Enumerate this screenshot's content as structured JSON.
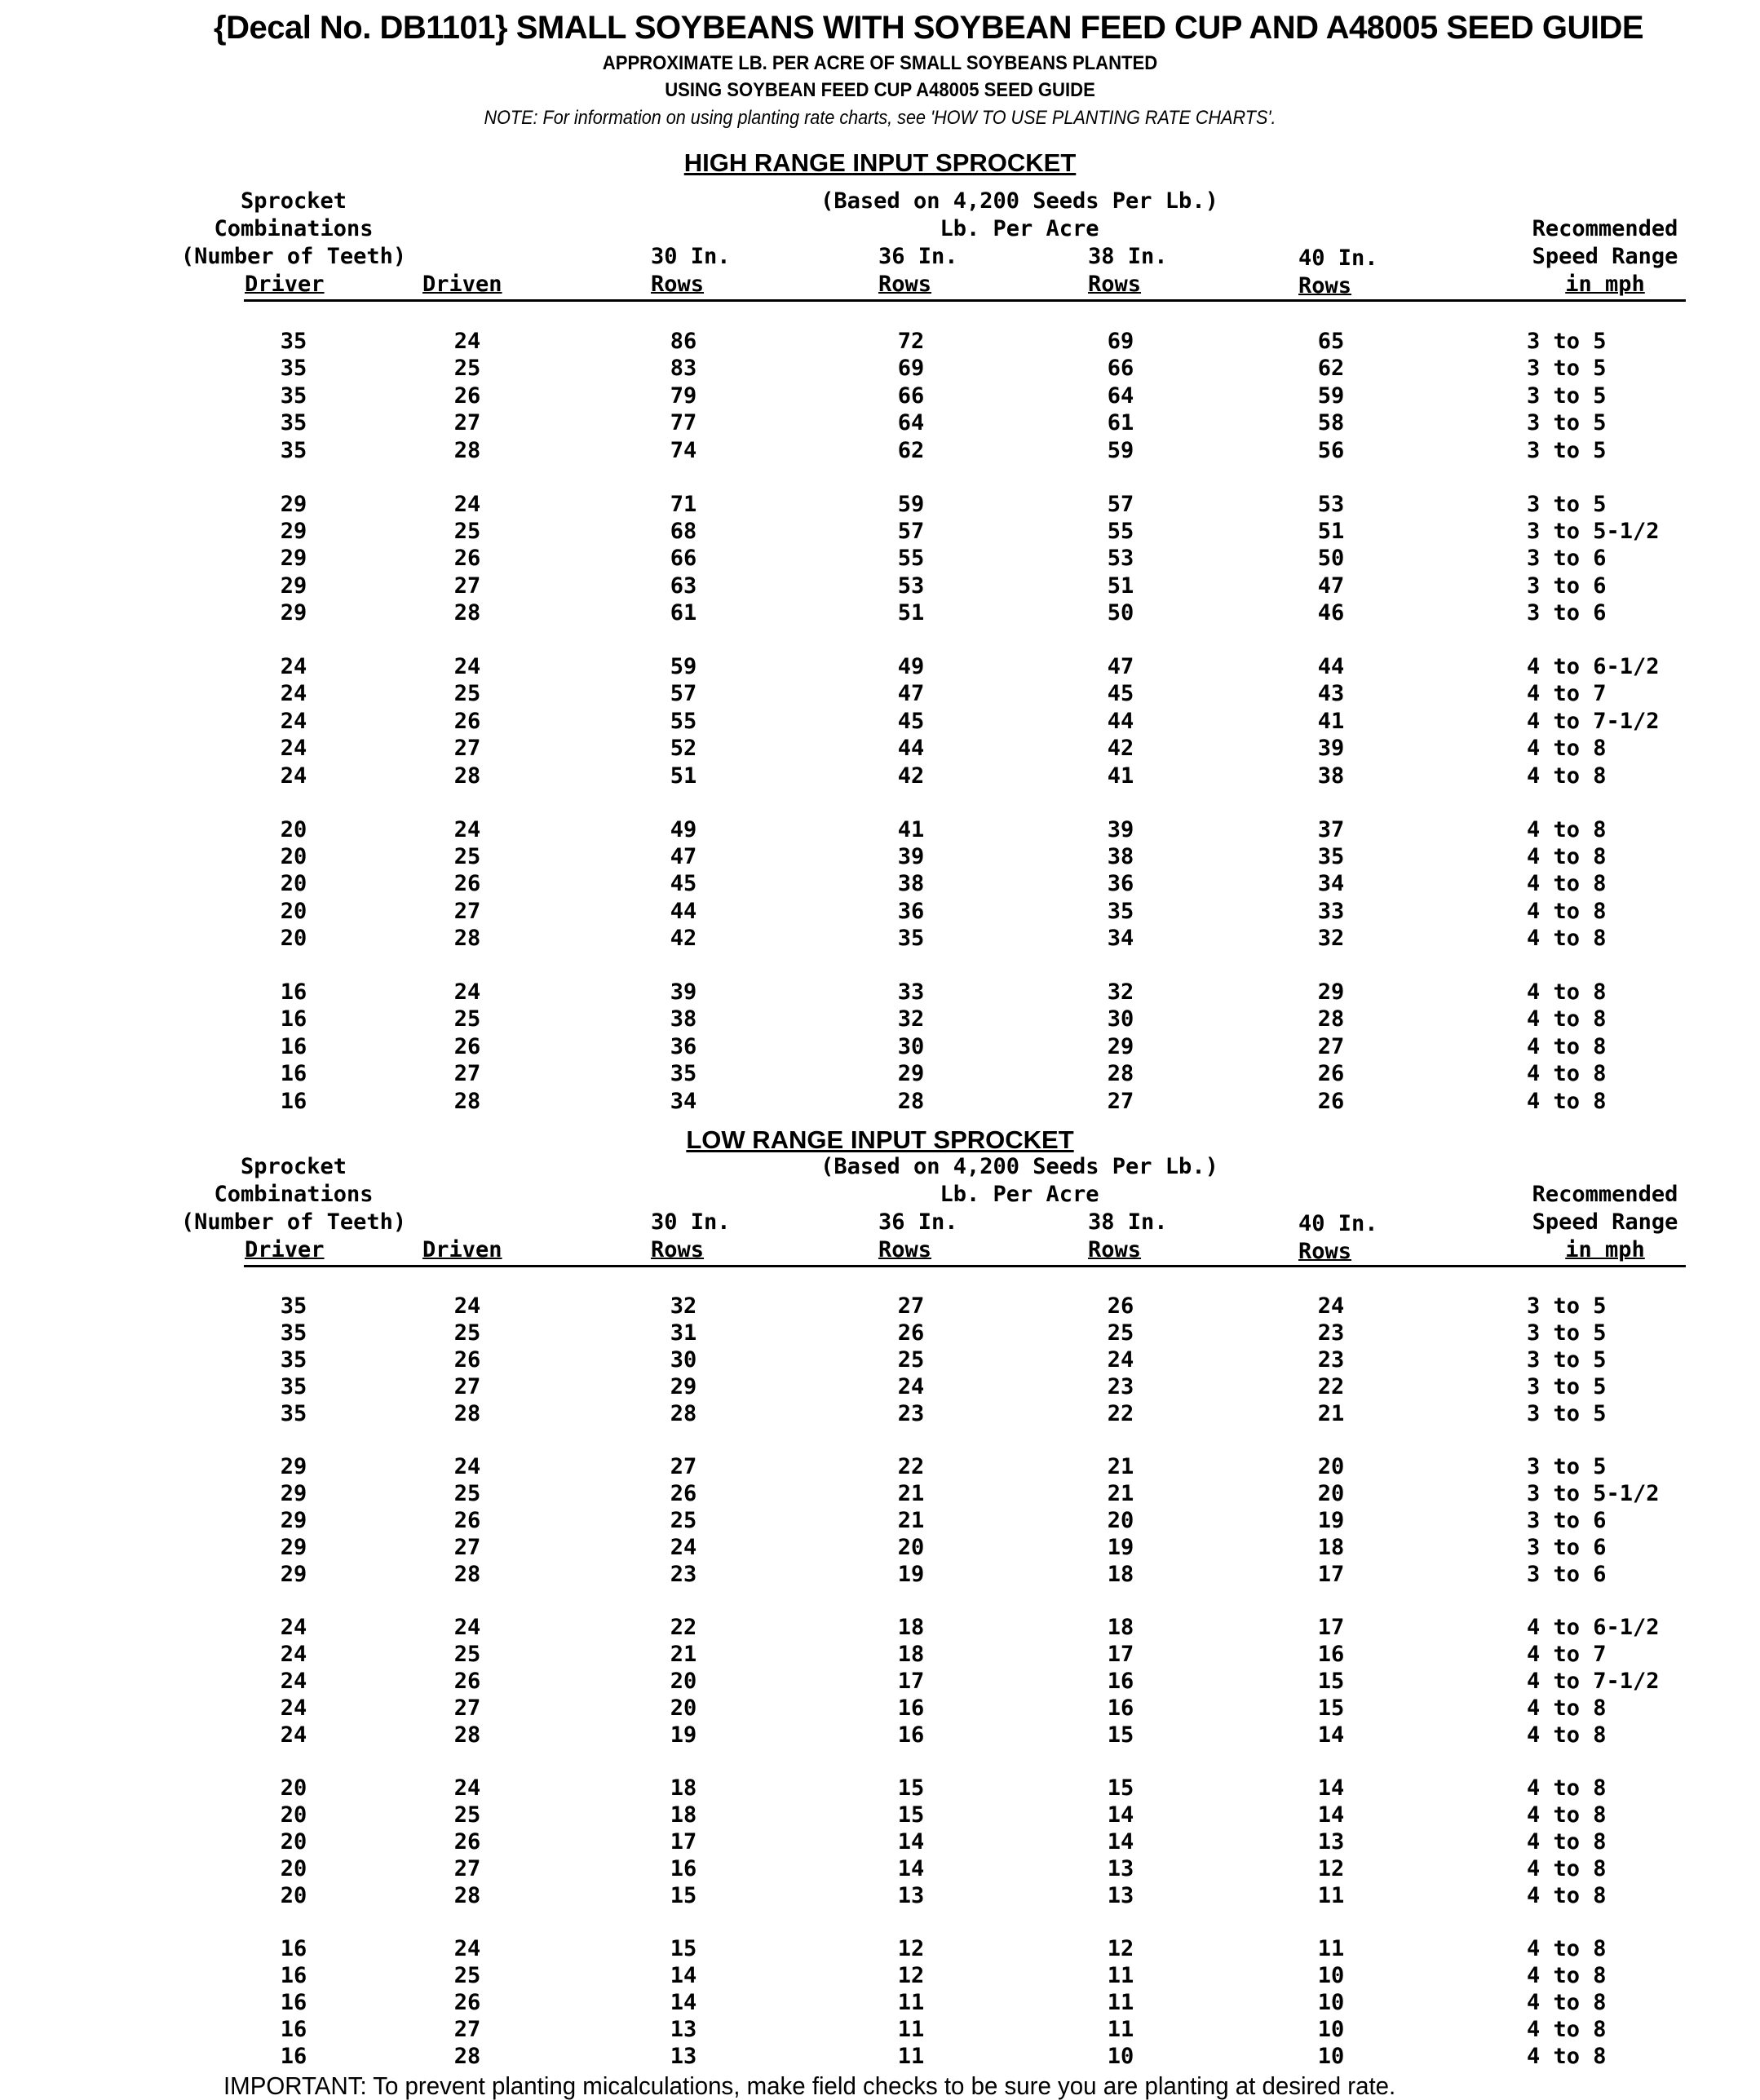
{
  "title": "{Decal No. DB1101}  SMALL SOYBEANS WITH SOYBEAN FEED CUP AND A48005 SEED GUIDE",
  "subtitle_1": "APPROXIMATE LB. PER ACRE OF SMALL SOYBEANS PLANTED",
  "subtitle_2": "USING SOYBEAN FEED CUP A48005 SEED GUIDE",
  "note": "NOTE: For information on using planting rate charts, see 'HOW TO USE PLANTING RATE CHARTS'.",
  "headers": {
    "sprocket": "Sprocket",
    "combinations": "Combinations",
    "teeth": "(Number of Teeth)",
    "driver": "Driver",
    "driven": "Driven",
    "based_on": "(Based on 4,200 Seeds Per Lb.)",
    "lb_per_acre": "Lb. Per Acre",
    "col30": "30 In.",
    "col36": "36 In.",
    "col38": "38 In.",
    "col40": "40 In.",
    "rows": "Rows",
    "recommended": "Recommended",
    "speed_range": "Speed Range",
    "in_mph": "in mph"
  },
  "sections": [
    {
      "title": "HIGH RANGE INPUT SPROCKET",
      "rows": [
        [
          "35",
          "24",
          "86",
          "72",
          "69",
          "65",
          "3 to 5"
        ],
        [
          "35",
          "25",
          "83",
          "69",
          "66",
          "62",
          "3 to 5"
        ],
        [
          "35",
          "26",
          "79",
          "66",
          "64",
          "59",
          "3 to 5"
        ],
        [
          "35",
          "27",
          "77",
          "64",
          "61",
          "58",
          "3 to 5"
        ],
        [
          "35",
          "28",
          "74",
          "62",
          "59",
          "56",
          "3 to 5"
        ],
        [
          "29",
          "24",
          "71",
          "59",
          "57",
          "53",
          "3 to 5"
        ],
        [
          "29",
          "25",
          "68",
          "57",
          "55",
          "51",
          "3 to 5-1/2"
        ],
        [
          "29",
          "26",
          "66",
          "55",
          "53",
          "50",
          "3 to 6"
        ],
        [
          "29",
          "27",
          "63",
          "53",
          "51",
          "47",
          "3 to 6"
        ],
        [
          "29",
          "28",
          "61",
          "51",
          "50",
          "46",
          "3 to 6"
        ],
        [
          "24",
          "24",
          "59",
          "49",
          "47",
          "44",
          "4 to 6-1/2"
        ],
        [
          "24",
          "25",
          "57",
          "47",
          "45",
          "43",
          "4 to 7"
        ],
        [
          "24",
          "26",
          "55",
          "45",
          "44",
          "41",
          "4 to 7-1/2"
        ],
        [
          "24",
          "27",
          "52",
          "44",
          "42",
          "39",
          "4 to 8"
        ],
        [
          "24",
          "28",
          "51",
          "42",
          "41",
          "38",
          "4 to 8"
        ],
        [
          "20",
          "24",
          "49",
          "41",
          "39",
          "37",
          "4 to 8"
        ],
        [
          "20",
          "25",
          "47",
          "39",
          "38",
          "35",
          "4 to 8"
        ],
        [
          "20",
          "26",
          "45",
          "38",
          "36",
          "34",
          "4 to 8"
        ],
        [
          "20",
          "27",
          "44",
          "36",
          "35",
          "33",
          "4 to 8"
        ],
        [
          "20",
          "28",
          "42",
          "35",
          "34",
          "32",
          "4 to 8"
        ],
        [
          "16",
          "24",
          "39",
          "33",
          "32",
          "29",
          "4 to 8"
        ],
        [
          "16",
          "25",
          "38",
          "32",
          "30",
          "28",
          "4 to 8"
        ],
        [
          "16",
          "26",
          "36",
          "30",
          "29",
          "27",
          "4 to 8"
        ],
        [
          "16",
          "27",
          "35",
          "29",
          "28",
          "26",
          "4 to 8"
        ],
        [
          "16",
          "28",
          "34",
          "28",
          "27",
          "26",
          "4 to 8"
        ]
      ]
    },
    {
      "title": "LOW RANGE INPUT SPROCKET",
      "rows": [
        [
          "35",
          "24",
          "32",
          "27",
          "26",
          "24",
          "3 to 5"
        ],
        [
          "35",
          "25",
          "31",
          "26",
          "25",
          "23",
          "3 to 5"
        ],
        [
          "35",
          "26",
          "30",
          "25",
          "24",
          "23",
          "3 to 5"
        ],
        [
          "35",
          "27",
          "29",
          "24",
          "23",
          "22",
          "3 to 5"
        ],
        [
          "35",
          "28",
          "28",
          "23",
          "22",
          "21",
          "3 to 5"
        ],
        [
          "29",
          "24",
          "27",
          "22",
          "21",
          "20",
          "3 to 5"
        ],
        [
          "29",
          "25",
          "26",
          "21",
          "21",
          "20",
          "3 to 5-1/2"
        ],
        [
          "29",
          "26",
          "25",
          "21",
          "20",
          "19",
          "3 to 6"
        ],
        [
          "29",
          "27",
          "24",
          "20",
          "19",
          "18",
          "3 to 6"
        ],
        [
          "29",
          "28",
          "23",
          "19",
          "18",
          "17",
          "3 to 6"
        ],
        [
          "24",
          "24",
          "22",
          "18",
          "18",
          "17",
          "4 to 6-1/2"
        ],
        [
          "24",
          "25",
          "21",
          "18",
          "17",
          "16",
          "4 to 7"
        ],
        [
          "24",
          "26",
          "20",
          "17",
          "16",
          "15",
          "4 to 7-1/2"
        ],
        [
          "24",
          "27",
          "20",
          "16",
          "16",
          "15",
          "4 to 8"
        ],
        [
          "24",
          "28",
          "19",
          "16",
          "15",
          "14",
          "4 to 8"
        ],
        [
          "20",
          "24",
          "18",
          "15",
          "15",
          "14",
          "4 to 8"
        ],
        [
          "20",
          "25",
          "18",
          "15",
          "14",
          "14",
          "4 to 8"
        ],
        [
          "20",
          "26",
          "17",
          "14",
          "14",
          "13",
          "4 to 8"
        ],
        [
          "20",
          "27",
          "16",
          "14",
          "13",
          "12",
          "4 to 8"
        ],
        [
          "20",
          "28",
          "15",
          "13",
          "13",
          "11",
          "4 to 8"
        ],
        [
          "16",
          "24",
          "15",
          "12",
          "12",
          "11",
          "4 to 8"
        ],
        [
          "16",
          "25",
          "14",
          "12",
          "11",
          "10",
          "4 to 8"
        ],
        [
          "16",
          "26",
          "14",
          "11",
          "11",
          "10",
          "4 to 8"
        ],
        [
          "16",
          "27",
          "13",
          "11",
          "11",
          "10",
          "4 to 8"
        ],
        [
          "16",
          "28",
          "13",
          "11",
          "10",
          "10",
          "4 to 8"
        ]
      ]
    }
  ],
  "footer": "IMPORTANT: To prevent planting micalculations, make field checks to be sure you are planting at desired rate."
}
